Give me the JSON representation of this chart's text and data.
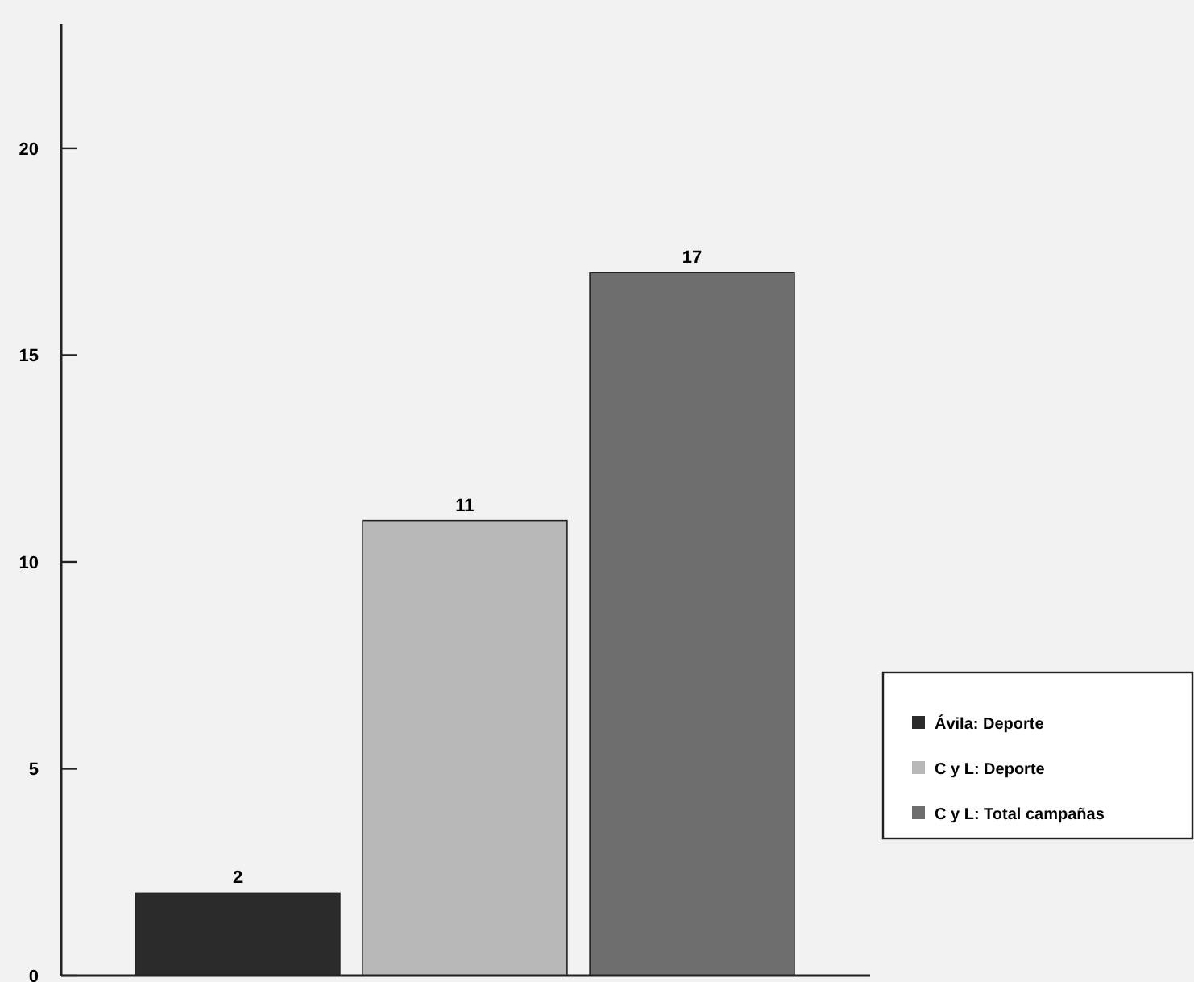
{
  "chart_data": {
    "type": "bar",
    "categories": [
      null,
      null,
      null
    ],
    "series": [
      {
        "name": "Ávila: Deporte",
        "color": "#2b2b2b",
        "values": [
          2,
          null,
          null
        ]
      },
      {
        "name": "C y L: Deporte",
        "color": "#b8b8b8",
        "values": [
          null,
          11,
          null
        ]
      },
      {
        "name": "C y L: Total campañas",
        "color": "#6e6e6e",
        "values": [
          null,
          null,
          17
        ]
      }
    ],
    "ylim": [
      0,
      23
    ],
    "yticks": [
      0,
      5,
      10,
      15,
      20
    ],
    "data_labels": true,
    "legend": "right",
    "grid": false
  }
}
